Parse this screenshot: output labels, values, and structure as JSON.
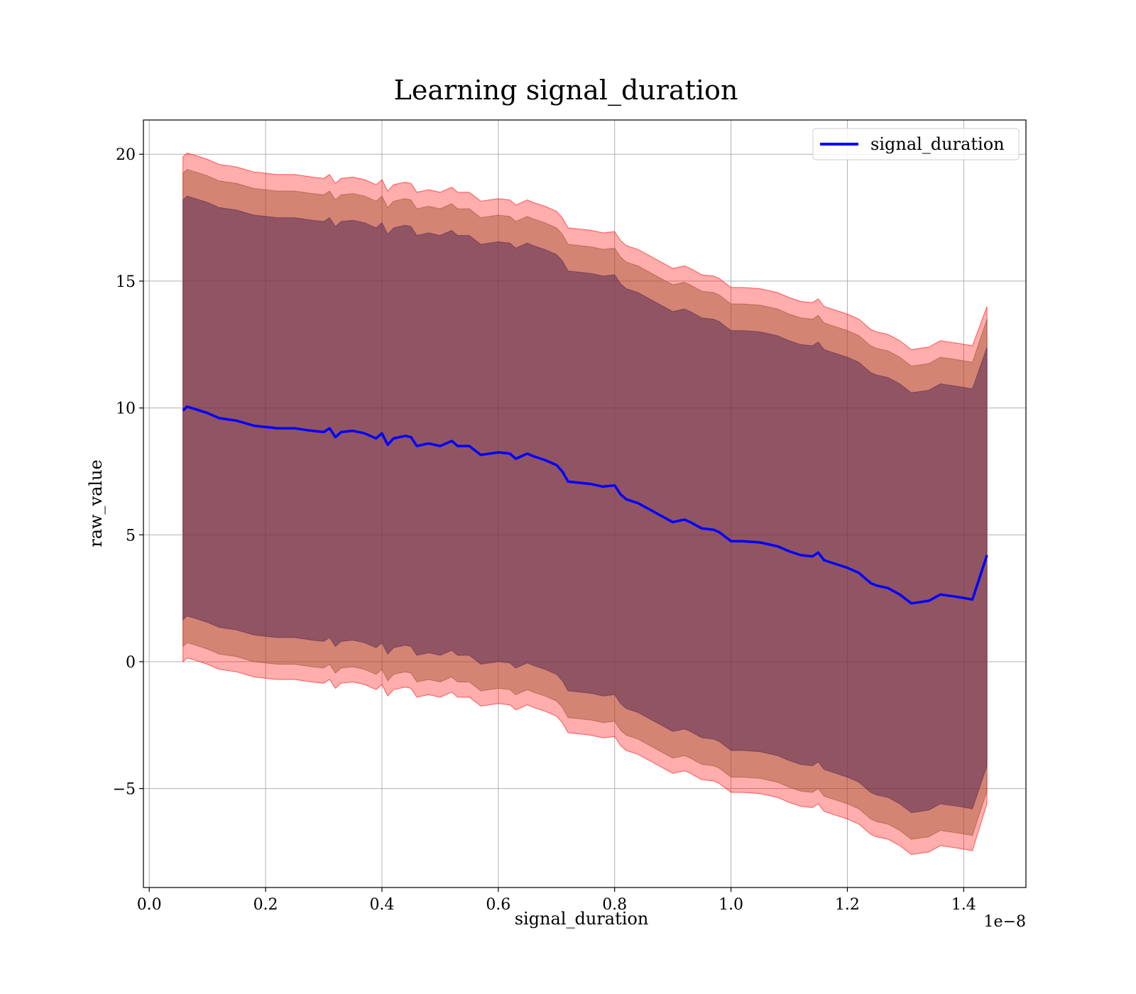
{
  "chart_data": {
    "type": "line",
    "title": "Learning signal_duration",
    "xlabel": "signal_duration",
    "ylabel": "raw_value",
    "x_offset_label": "1e−8",
    "xlim": [
      -0.01,
      1.507
    ],
    "ylim": [
      -8.9,
      21.35
    ],
    "x_ticks": [
      0.0,
      0.2,
      0.4,
      0.6,
      0.8,
      1.0,
      1.2,
      1.4
    ],
    "x_tick_labels": [
      "0.0",
      "0.2",
      "0.4",
      "0.6",
      "0.8",
      "1.0",
      "1.2",
      "1.4"
    ],
    "y_ticks": [
      -5,
      0,
      5,
      10,
      15,
      20
    ],
    "y_tick_labels": [
      "−5",
      "0",
      "5",
      "10",
      "15",
      "20"
    ],
    "grid": true,
    "legend_position": "top-right",
    "colors": {
      "line": "#0000ff",
      "band_outer": "#ff0000",
      "band_middle": "#a0522d",
      "band_inner": "#5a2e55"
    },
    "series": [
      {
        "name": "signal_duration",
        "x": [
          0.058,
          0.065,
          0.08,
          0.1,
          0.12,
          0.15,
          0.18,
          0.2,
          0.22,
          0.25,
          0.28,
          0.3,
          0.31,
          0.32,
          0.33,
          0.35,
          0.37,
          0.39,
          0.4,
          0.41,
          0.42,
          0.44,
          0.45,
          0.46,
          0.48,
          0.5,
          0.52,
          0.53,
          0.55,
          0.57,
          0.6,
          0.62,
          0.63,
          0.65,
          0.66,
          0.68,
          0.7,
          0.71,
          0.72,
          0.74,
          0.76,
          0.78,
          0.8,
          0.81,
          0.82,
          0.84,
          0.86,
          0.88,
          0.9,
          0.92,
          0.93,
          0.95,
          0.97,
          0.98,
          1.0,
          1.02,
          1.05,
          1.08,
          1.1,
          1.12,
          1.14,
          1.15,
          1.16,
          1.18,
          1.2,
          1.22,
          1.24,
          1.25,
          1.27,
          1.29,
          1.31,
          1.34,
          1.36,
          1.39,
          1.415,
          1.44
        ],
        "y": [
          9.9,
          10.05,
          9.95,
          9.8,
          9.6,
          9.5,
          9.3,
          9.25,
          9.2,
          9.2,
          9.1,
          9.05,
          9.2,
          8.85,
          9.05,
          9.1,
          9.0,
          8.8,
          9.0,
          8.55,
          8.8,
          8.9,
          8.85,
          8.5,
          8.6,
          8.5,
          8.7,
          8.5,
          8.5,
          8.15,
          8.25,
          8.2,
          8.0,
          8.2,
          8.1,
          7.95,
          7.75,
          7.5,
          7.1,
          7.05,
          7.0,
          6.9,
          6.95,
          6.6,
          6.4,
          6.25,
          6.0,
          5.75,
          5.5,
          5.6,
          5.5,
          5.25,
          5.2,
          5.1,
          4.75,
          4.75,
          4.7,
          4.55,
          4.35,
          4.2,
          4.15,
          4.3,
          4.0,
          3.85,
          3.7,
          3.5,
          3.1,
          3.0,
          2.9,
          2.65,
          2.3,
          2.4,
          2.65,
          2.55,
          2.45,
          4.2
        ]
      }
    ],
    "bands": [
      {
        "series": "signal_duration",
        "level": "outer",
        "lower_offset": -9.9,
        "upper_offset": 10.0,
        "end_upper": 14.0,
        "end_lower": -5.6
      },
      {
        "series": "signal_duration",
        "level": "middle",
        "lower_offset": -9.3,
        "upper_offset": 9.35,
        "end_upper": 13.5,
        "end_lower": -5.1
      },
      {
        "series": "signal_duration",
        "level": "inner",
        "lower_offset": -8.25,
        "upper_offset": 8.3,
        "end_upper": 12.4,
        "end_lower": -4.1
      }
    ]
  }
}
